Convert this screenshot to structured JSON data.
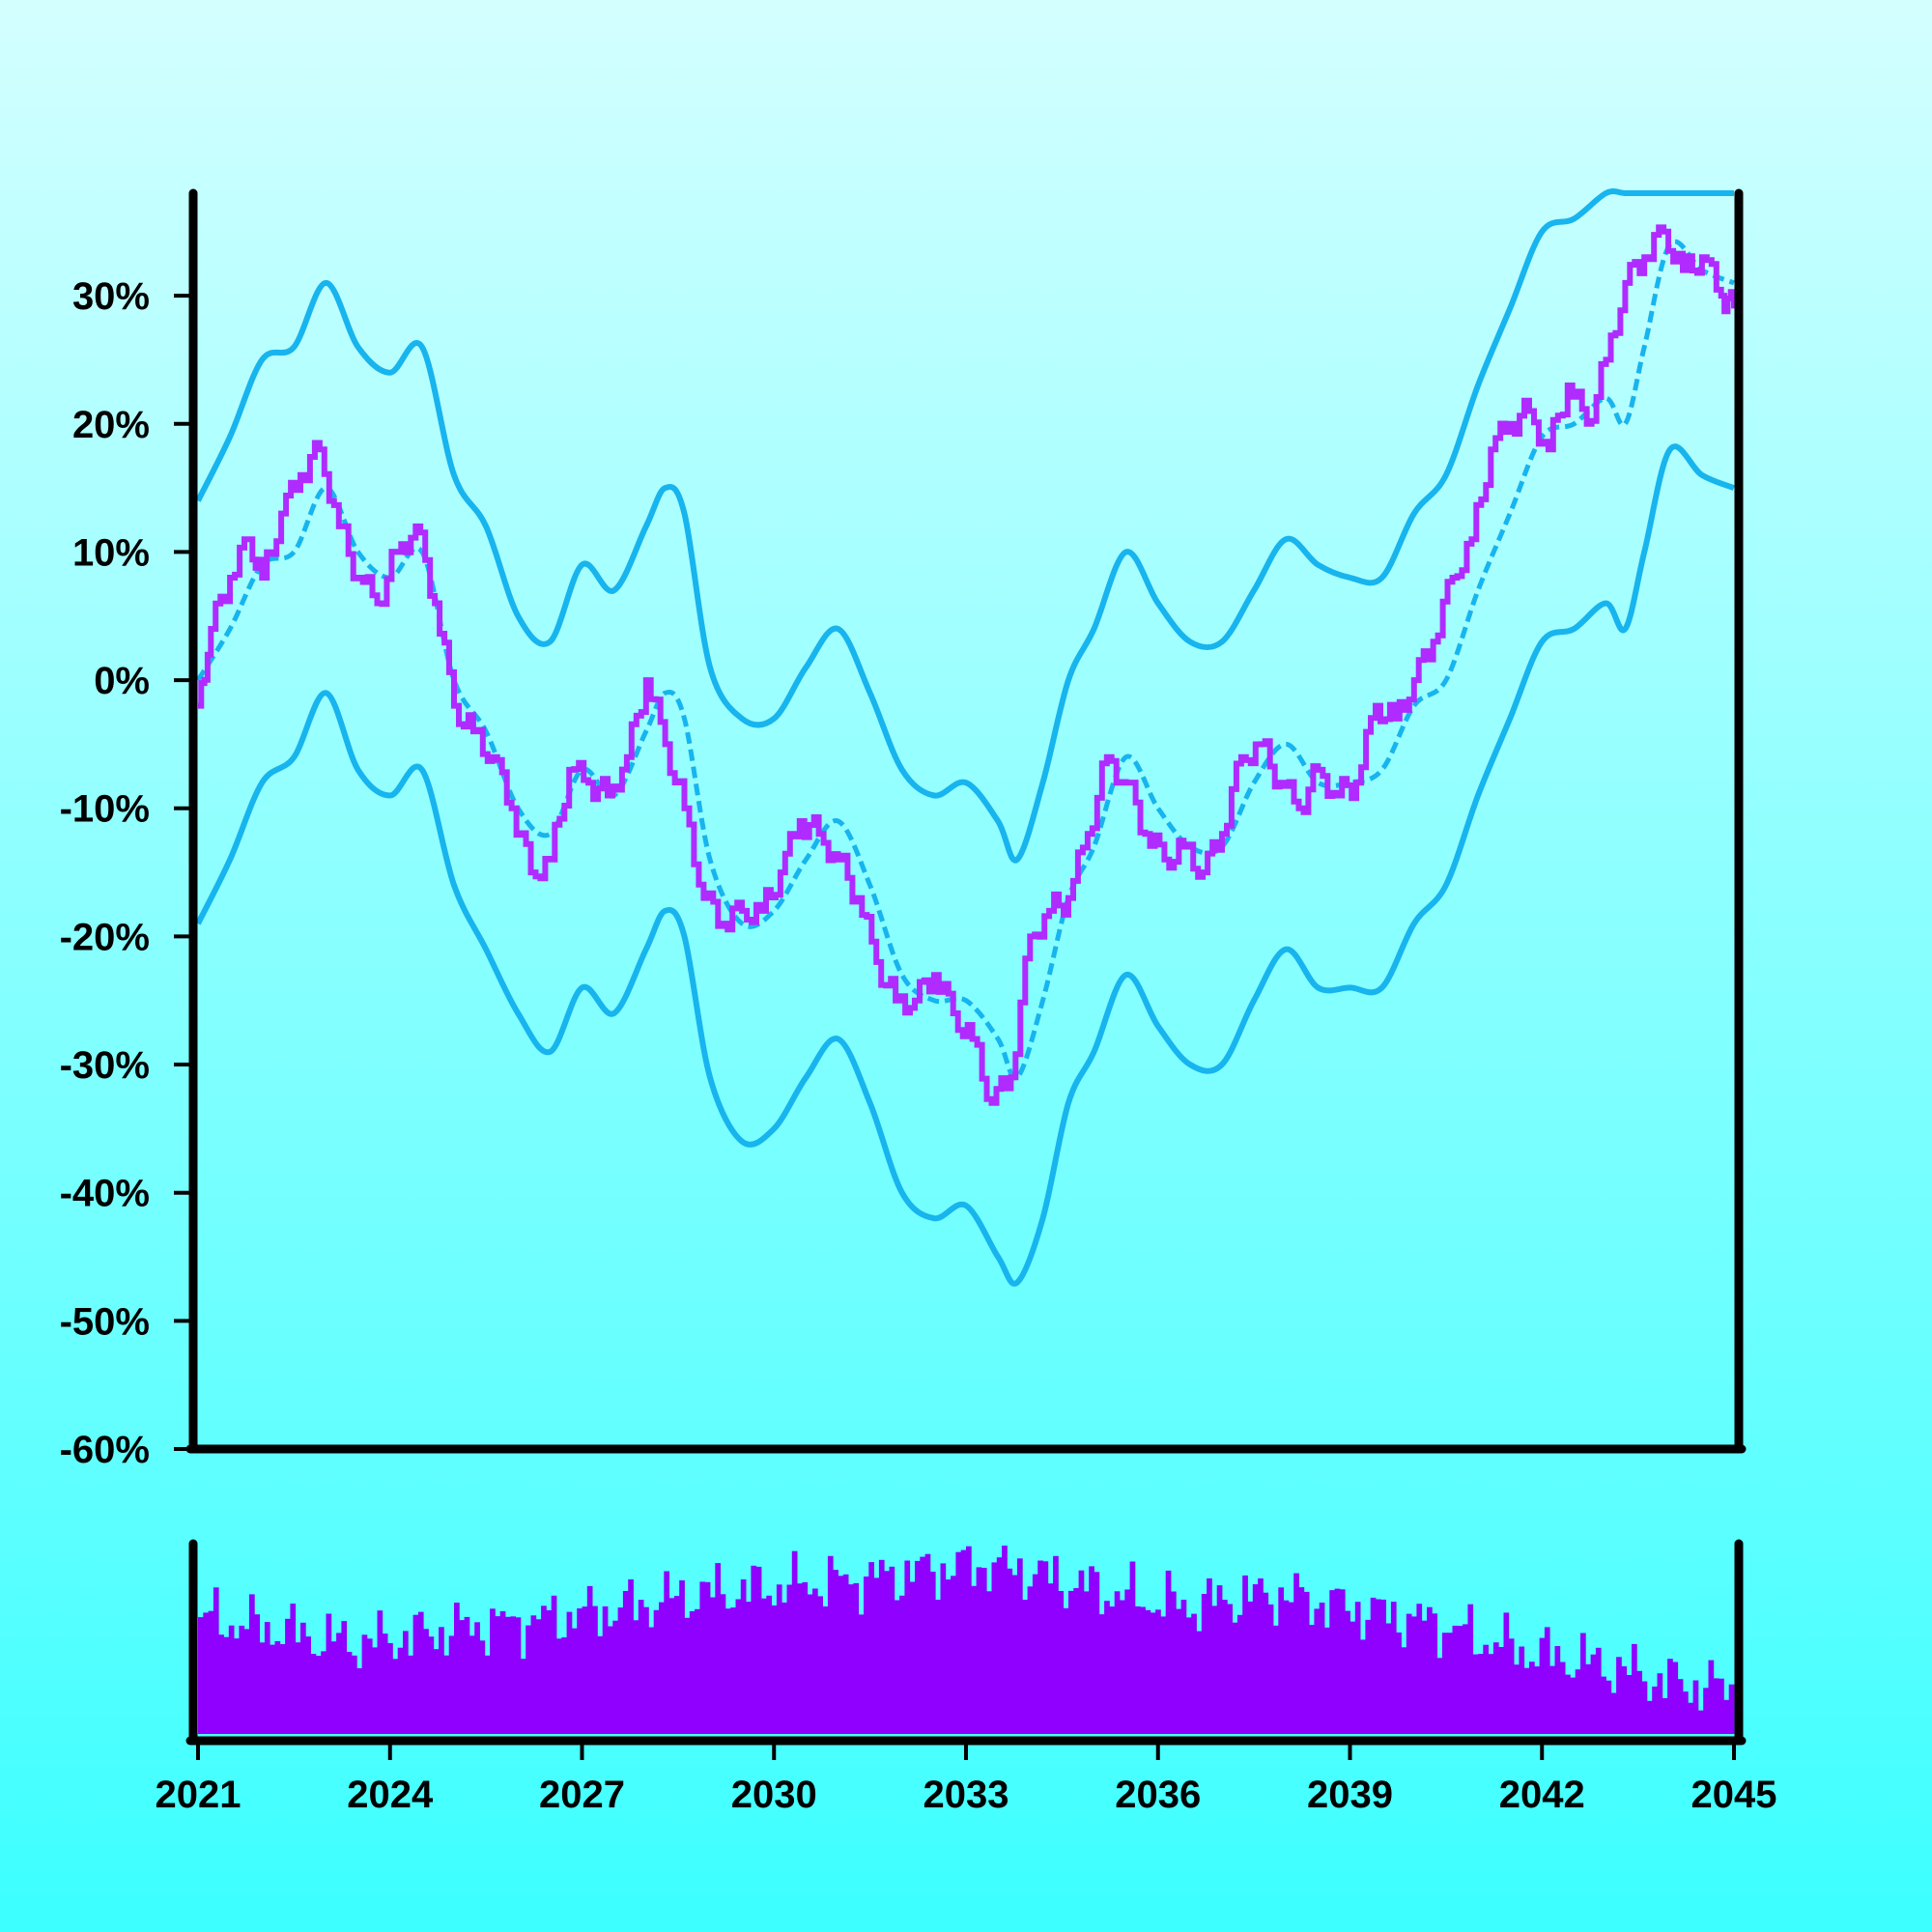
{
  "chart_data": {
    "type": "line",
    "title": "",
    "xlabel": "",
    "ylabel": "",
    "x_range": [
      "2021-01-01",
      "2045-01-01"
    ],
    "x_ticks": [
      "2021",
      "2024",
      "2027",
      "2030",
      "2033",
      "2036",
      "2039",
      "2042",
      "2045"
    ],
    "y_ticks": [
      "30%",
      "20%",
      "10%",
      "0%",
      "-10%",
      "-20%",
      "-30%",
      "-40%",
      "-50%",
      "-60%"
    ],
    "ylim": [
      -0.6,
      0.38
    ],
    "colors": {
      "price": "#b02bff",
      "bands": "#17b4ee",
      "volume": "#8f00ff",
      "axes": "#000000"
    },
    "series": [
      {
        "kind": "price",
        "x": [
          2021.0,
          2021.2,
          2021.5,
          2021.8,
          2022.0,
          2022.3,
          2022.6,
          2022.9,
          2023.2,
          2023.5,
          2023.8,
          2024.1,
          2024.4,
          2024.7,
          2025.0,
          2025.3,
          2025.6,
          2025.9,
          2026.2,
          2026.5,
          2026.8,
          2027.1,
          2027.4,
          2027.7,
          2028.0,
          2028.3,
          2028.6,
          2028.9,
          2029.2,
          2029.5,
          2029.8,
          2030.1,
          2030.4,
          2030.7,
          2031.0,
          2031.3,
          2031.6,
          2031.9,
          2032.2,
          2032.5,
          2032.8,
          2033.1,
          2033.4,
          2033.7,
          2034.0,
          2034.3,
          2034.6,
          2034.9,
          2035.2,
          2035.5,
          2035.8,
          2036.1,
          2036.4,
          2036.7,
          2037.0,
          2037.3,
          2037.6,
          2037.9,
          2038.2,
          2038.5,
          2038.8,
          2039.1,
          2039.4,
          2039.7,
          2040.0,
          2040.3,
          2040.6,
          2040.9,
          2041.2,
          2041.5,
          2041.8,
          2042.1,
          2042.4,
          2042.7,
          2043.0,
          2043.3,
          2043.6,
          2043.9,
          2044.2,
          2044.5,
          2044.8,
          2045.0
        ],
        "y": [
          -0.02,
          0.04,
          0.08,
          0.11,
          0.08,
          0.13,
          0.16,
          0.18,
          0.12,
          0.08,
          0.06,
          0.1,
          0.12,
          0.06,
          -0.02,
          -0.04,
          -0.06,
          -0.1,
          -0.15,
          -0.14,
          -0.07,
          -0.08,
          -0.09,
          -0.06,
          0.0,
          -0.05,
          -0.1,
          -0.17,
          -0.19,
          -0.18,
          -0.18,
          -0.15,
          -0.11,
          -0.12,
          -0.14,
          -0.17,
          -0.22,
          -0.25,
          -0.25,
          -0.23,
          -0.26,
          -0.28,
          -0.33,
          -0.31,
          -0.2,
          -0.18,
          -0.17,
          -0.12,
          -0.06,
          -0.08,
          -0.12,
          -0.14,
          -0.13,
          -0.15,
          -0.12,
          -0.06,
          -0.05,
          -0.08,
          -0.1,
          -0.07,
          -0.09,
          -0.08,
          -0.02,
          -0.03,
          0.0,
          0.03,
          0.08,
          0.11,
          0.18,
          0.2,
          0.21,
          0.18,
          0.23,
          0.2,
          0.25,
          0.31,
          0.33,
          0.35,
          0.32,
          0.33,
          0.3,
          0.29
        ]
      },
      {
        "kind": "moving-average",
        "x": [
          2021.0,
          2021.5,
          2022.0,
          2022.5,
          2023.0,
          2023.5,
          2024.0,
          2024.5,
          2025.0,
          2025.5,
          2026.0,
          2026.5,
          2027.0,
          2027.5,
          2028.0,
          2028.3,
          2028.6,
          2029.0,
          2029.5,
          2030.0,
          2030.5,
          2031.0,
          2031.5,
          2032.0,
          2032.5,
          2033.0,
          2033.5,
          2033.8,
          2034.2,
          2034.6,
          2035.0,
          2035.5,
          2036.0,
          2036.5,
          2037.0,
          2037.5,
          2038.0,
          2038.5,
          2039.0,
          2039.5,
          2040.0,
          2040.5,
          2041.0,
          2041.5,
          2042.0,
          2042.5,
          2043.0,
          2043.3,
          2043.6,
          2044.0,
          2044.5,
          2045.0
        ],
        "y": [
          0.0,
          0.04,
          0.09,
          0.1,
          0.15,
          0.1,
          0.08,
          0.1,
          0.0,
          -0.04,
          -0.1,
          -0.12,
          -0.07,
          -0.09,
          -0.04,
          -0.01,
          -0.03,
          -0.14,
          -0.19,
          -0.18,
          -0.14,
          -0.11,
          -0.16,
          -0.23,
          -0.25,
          -0.25,
          -0.28,
          -0.31,
          -0.25,
          -0.17,
          -0.13,
          -0.06,
          -0.1,
          -0.13,
          -0.13,
          -0.08,
          -0.05,
          -0.08,
          -0.08,
          -0.07,
          -0.02,
          0.0,
          0.07,
          0.13,
          0.19,
          0.2,
          0.22,
          0.2,
          0.26,
          0.34,
          0.32,
          0.31
        ]
      },
      {
        "kind": "upper-band",
        "x": [
          2021.0,
          2021.5,
          2022.0,
          2022.5,
          2023.0,
          2023.5,
          2024.0,
          2024.5,
          2025.0,
          2025.5,
          2026.0,
          2026.5,
          2027.0,
          2027.5,
          2028.0,
          2028.3,
          2028.6,
          2029.0,
          2029.5,
          2030.0,
          2030.5,
          2031.0,
          2031.5,
          2032.0,
          2032.5,
          2033.0,
          2033.5,
          2033.8,
          2034.2,
          2034.6,
          2035.0,
          2035.5,
          2036.0,
          2036.5,
          2037.0,
          2037.5,
          2038.0,
          2038.5,
          2039.0,
          2039.5,
          2040.0,
          2040.5,
          2041.0,
          2041.5,
          2042.0,
          2042.5,
          2043.0,
          2043.3,
          2043.6,
          2044.0,
          2044.5,
          2045.0
        ],
        "y": [
          0.14,
          0.19,
          0.25,
          0.26,
          0.31,
          0.26,
          0.24,
          0.26,
          0.16,
          0.12,
          0.05,
          0.03,
          0.09,
          0.07,
          0.12,
          0.15,
          0.13,
          0.01,
          -0.03,
          -0.03,
          0.01,
          0.04,
          -0.01,
          -0.07,
          -0.09,
          -0.08,
          -0.11,
          -0.14,
          -0.08,
          0.0,
          0.04,
          0.1,
          0.06,
          0.03,
          0.03,
          0.07,
          0.11,
          0.09,
          0.08,
          0.08,
          0.13,
          0.16,
          0.23,
          0.29,
          0.35,
          0.36,
          0.38,
          0.38,
          0.38,
          0.38,
          0.38,
          0.38
        ]
      },
      {
        "kind": "lower-band",
        "x": [
          2021.0,
          2021.5,
          2022.0,
          2022.5,
          2023.0,
          2023.5,
          2024.0,
          2024.5,
          2025.0,
          2025.5,
          2026.0,
          2026.5,
          2027.0,
          2027.5,
          2028.0,
          2028.3,
          2028.6,
          2029.0,
          2029.5,
          2030.0,
          2030.5,
          2031.0,
          2031.5,
          2032.0,
          2032.5,
          2033.0,
          2033.5,
          2033.8,
          2034.2,
          2034.6,
          2035.0,
          2035.5,
          2036.0,
          2036.5,
          2037.0,
          2037.5,
          2038.0,
          2038.5,
          2039.0,
          2039.5,
          2040.0,
          2040.5,
          2041.0,
          2041.5,
          2042.0,
          2042.5,
          2043.0,
          2043.3,
          2043.6,
          2044.0,
          2044.5,
          2045.0
        ],
        "y": [
          -0.19,
          -0.14,
          -0.08,
          -0.06,
          -0.01,
          -0.07,
          -0.09,
          -0.07,
          -0.16,
          -0.21,
          -0.26,
          -0.29,
          -0.24,
          -0.26,
          -0.21,
          -0.18,
          -0.2,
          -0.31,
          -0.36,
          -0.35,
          -0.31,
          -0.28,
          -0.33,
          -0.4,
          -0.42,
          -0.41,
          -0.45,
          -0.47,
          -0.42,
          -0.33,
          -0.29,
          -0.23,
          -0.27,
          -0.3,
          -0.3,
          -0.25,
          -0.21,
          -0.24,
          -0.24,
          -0.24,
          -0.19,
          -0.16,
          -0.09,
          -0.03,
          0.03,
          0.04,
          0.06,
          0.04,
          0.1,
          0.18,
          0.16,
          0.15
        ]
      }
    ],
    "volume": {
      "x_range": [
        "2021-01-01",
        "2045-01-01"
      ],
      "levels": [
        0.62,
        0.58,
        0.55,
        0.5,
        0.48,
        0.52,
        0.55,
        0.58,
        0.6,
        0.63,
        0.66,
        0.7,
        0.74,
        0.76,
        0.78,
        0.8,
        0.82,
        0.85,
        0.88,
        0.9,
        0.86,
        0.8,
        0.75,
        0.7,
        0.68,
        0.72,
        0.74,
        0.7,
        0.66,
        0.62,
        0.58,
        0.5,
        0.44,
        0.4,
        0.36,
        0.3,
        0.26,
        0.24
      ]
    },
    "grid": false,
    "legend": "none"
  }
}
